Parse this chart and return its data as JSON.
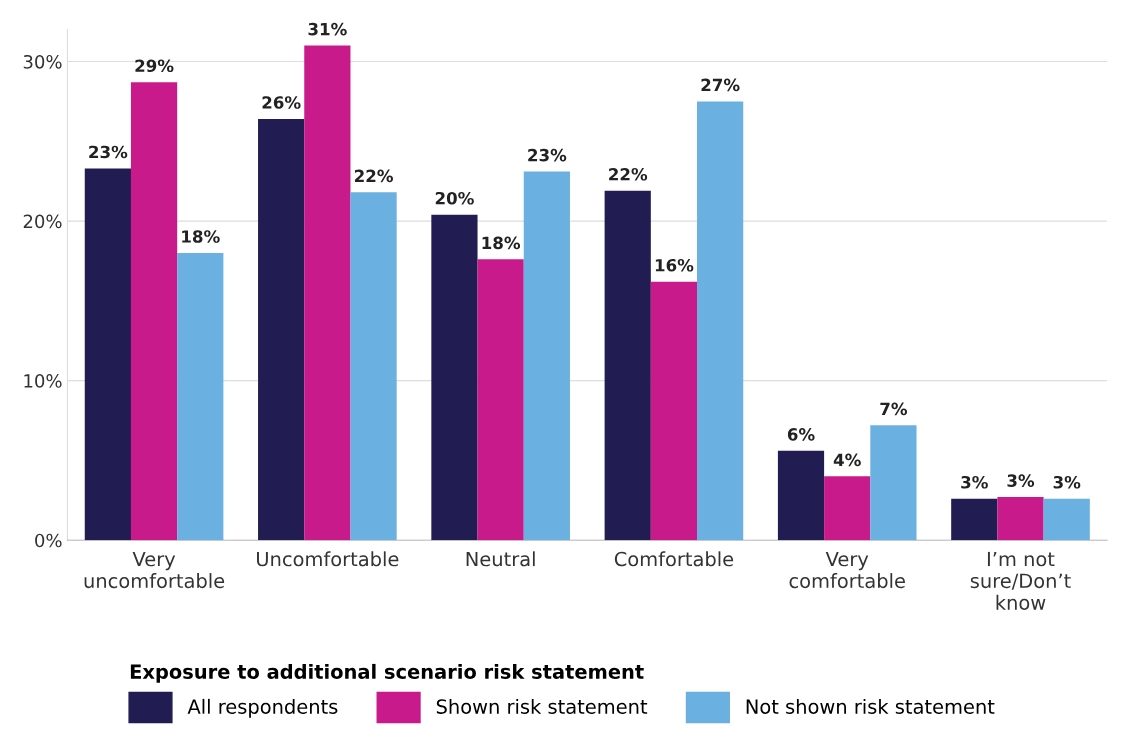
{
  "chart_data": {
    "type": "bar",
    "categories": [
      "Very\nuncomfortable",
      "Uncomfortable",
      "Neutral",
      "Comfortable",
      "Very\ncomfortable",
      "I’m not\nsure/Don’t\nknow"
    ],
    "series": [
      {
        "name": "All respondents",
        "color": "#211c52",
        "values": [
          23.3,
          26.4,
          20.4,
          21.9,
          5.6,
          2.6
        ],
        "value_labels": [
          "23%",
          "26%",
          "20%",
          "22%",
          "6%",
          "3%"
        ]
      },
      {
        "name": "Shown risk statement",
        "color": "#c81a8a",
        "values": [
          28.7,
          31.0,
          17.6,
          16.2,
          4.0,
          2.7
        ],
        "value_labels": [
          "29%",
          "31%",
          "18%",
          "16%",
          "4%",
          "3%"
        ]
      },
      {
        "name": "Not shown risk statement",
        "color": "#6ab0e0",
        "values": [
          18.0,
          21.8,
          23.1,
          27.5,
          7.2,
          2.6
        ],
        "value_labels": [
          "18%",
          "22%",
          "23%",
          "27%",
          "7%",
          "3%"
        ]
      }
    ],
    "legend_title": "Exposure to additional scenario risk statement",
    "legend": "bottom",
    "ylim": [
      0,
      32
    ],
    "yticks": [
      {
        "value": 0,
        "label": "0%"
      },
      {
        "value": 10,
        "label": "10%"
      },
      {
        "value": 20,
        "label": "20%"
      },
      {
        "value": 30,
        "label": "30%"
      }
    ],
    "grid": "y"
  }
}
